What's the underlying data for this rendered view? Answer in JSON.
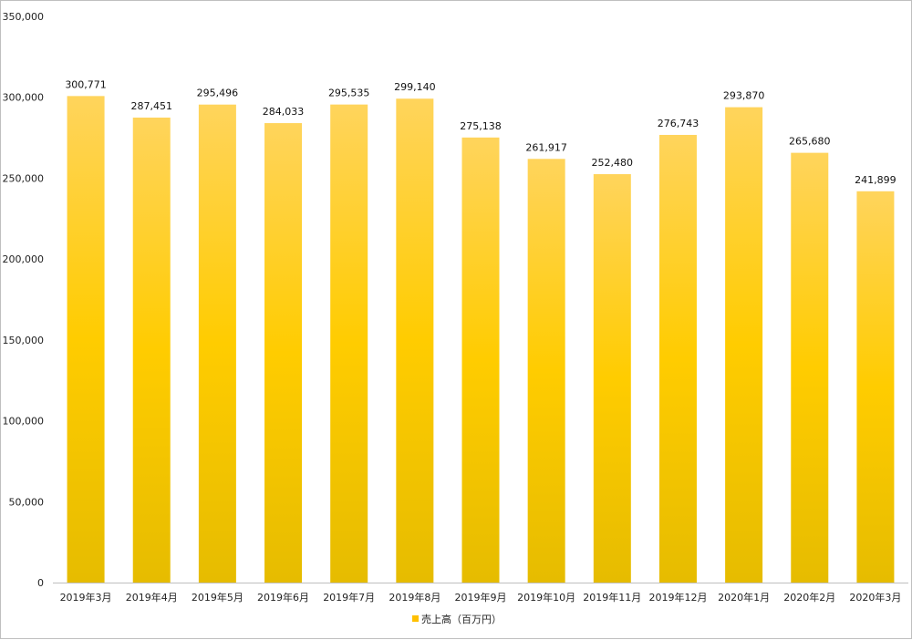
{
  "chart_data": {
    "type": "bar",
    "categories": [
      "2019年3月",
      "2019年4月",
      "2019年5月",
      "2019年6月",
      "2019年7月",
      "2019年8月",
      "2019年9月",
      "2019年10月",
      "2019年11月",
      "2019年12月",
      "2020年1月",
      "2020年2月",
      "2020年3月"
    ],
    "series": [
      {
        "name": "売上高（百万円）",
        "values": [
          300771,
          287451,
          295496,
          284033,
          295535,
          299140,
          275138,
          261917,
          252480,
          276743,
          293870,
          265680,
          241899
        ],
        "value_labels": [
          "300,771",
          "287,451",
          "295,496",
          "284,033",
          "295,535",
          "299,140",
          "275,138",
          "261,917",
          "252,480",
          "276,743",
          "293,870",
          "265,680",
          "241,899"
        ]
      }
    ],
    "ylim": [
      0,
      350000
    ],
    "yticks": [
      0,
      50000,
      100000,
      150000,
      200000,
      250000,
      300000,
      350000
    ],
    "ytick_labels": [
      "0",
      "50,000",
      "100,000",
      "150,000",
      "200,000",
      "250,000",
      "300,000",
      "350,000"
    ],
    "grid": false,
    "legend_position": "bottom-center",
    "colors": {
      "bar_top": "#FFD45C",
      "bar_mid": "#FFCC00",
      "bar_bottom": "#E6BC00",
      "legend_marker": "#FFC000",
      "axis": "#bfbfbf"
    }
  }
}
